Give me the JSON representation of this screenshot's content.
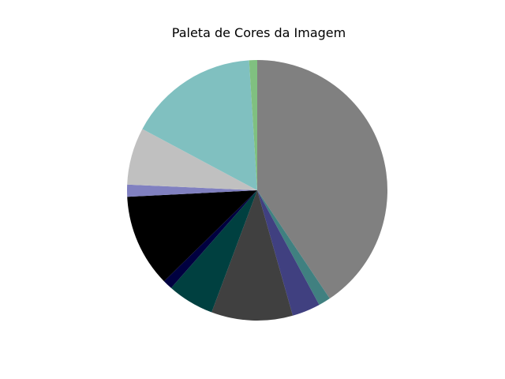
{
  "chart_data": {
    "type": "pie",
    "title": "Paleta de Cores da Imagem",
    "start_angle_deg": 90,
    "direction": "clockwise",
    "slices": [
      {
        "color": "#808080",
        "value": 40.6
      },
      {
        "color": "#408080",
        "value": 1.5
      },
      {
        "color": "#404080",
        "value": 3.5
      },
      {
        "color": "#404040",
        "value": 10.1
      },
      {
        "color": "#004040",
        "value": 5.8
      },
      {
        "color": "#000040",
        "value": 1.2
      },
      {
        "color": "#000000",
        "value": 11.5
      },
      {
        "color": "#8080c0",
        "value": 1.5
      },
      {
        "color": "#c0c0c0",
        "value": 7.1
      },
      {
        "color": "#80c0c0",
        "value": 16.2
      },
      {
        "color": "#80c080",
        "value": 1.0
      }
    ]
  }
}
